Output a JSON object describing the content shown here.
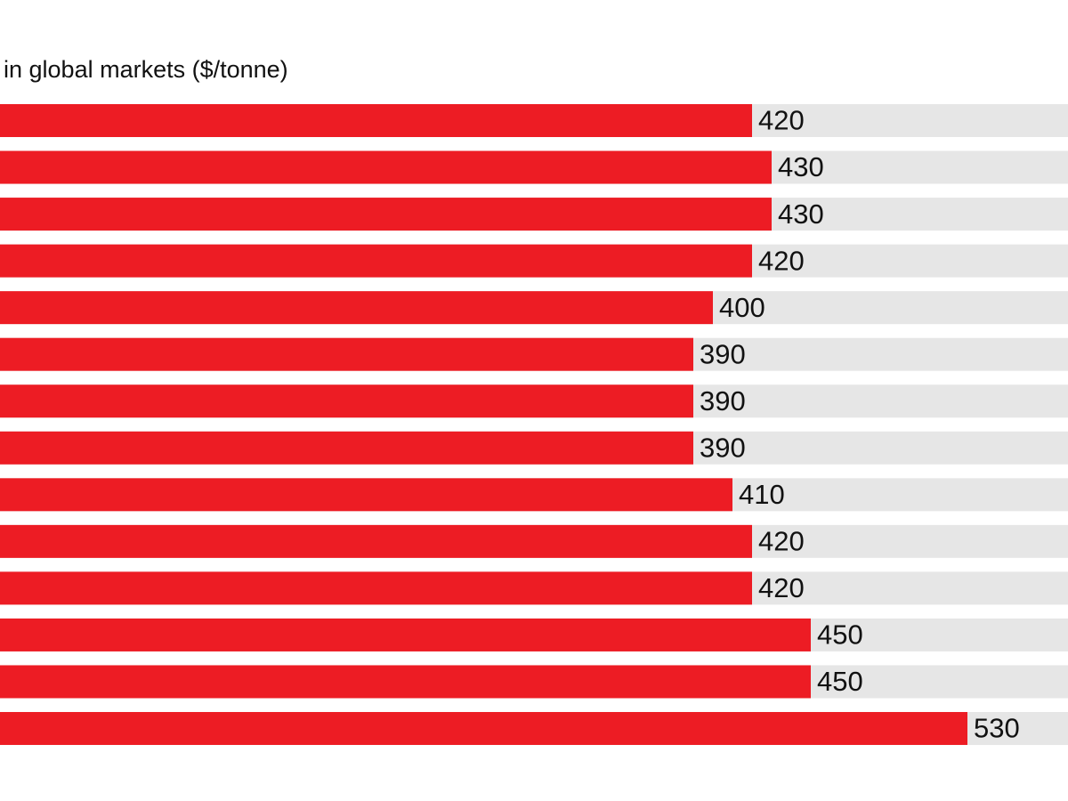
{
  "chart_data": {
    "type": "bar",
    "orientation": "horizontal",
    "title": "in global markets ($/tonne)",
    "values": [
      420,
      430,
      430,
      420,
      400,
      390,
      390,
      390,
      410,
      420,
      420,
      450,
      450,
      530
    ],
    "color": "#ed1c24",
    "track_color": "#e6e6e6"
  }
}
